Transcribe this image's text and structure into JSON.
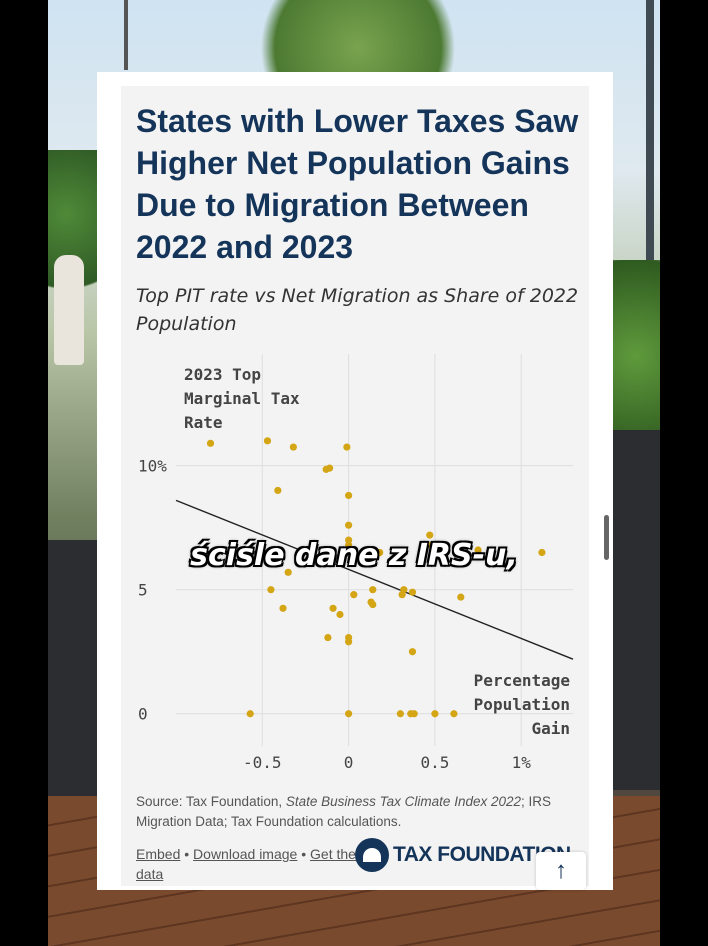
{
  "card": {
    "title": "States with Lower Taxes Saw Higher Net Population Gains Due to Migration Between 2022 and 2023",
    "subtitle": "Top PIT rate vs Net Migration as Share of 2022 Population",
    "source_prefix": "Source: Tax Foundation, ",
    "source_italic": "State Business Tax Climate Index 2022",
    "source_suffix": "; IRS Migration Data; Tax Foundation calculations.",
    "embed_label": "Embed",
    "download_label": "Download image",
    "getdata_label": "Get the data",
    "logo_text": "TAX FOUNDATION",
    "scroll_up_glyph": "↑"
  },
  "caption": "ściśle dane z IRS-u,",
  "colors": {
    "title": "#14345a",
    "point": "#d4a514",
    "trend": "#222222",
    "grid": "#dedede"
  },
  "chart_data": {
    "type": "scatter",
    "title": "States with Lower Taxes Saw Higher Net Population Gains Due to Migration Between 2022 and 2023",
    "subtitle": "Top PIT rate vs Net Migration as Share of 2022 Population",
    "ylabel_lines": [
      "2023 Top",
      "Marginal Tax",
      "Rate"
    ],
    "xlabel_lines": [
      "Percentage",
      "Population",
      "Gain"
    ],
    "xlim": [
      -1.0,
      1.3
    ],
    "ylim": [
      -1.3,
      14.5
    ],
    "xticks": [
      {
        "value": -0.5,
        "label": "-0.5"
      },
      {
        "value": 0,
        "label": "0"
      },
      {
        "value": 0.5,
        "label": "0.5"
      },
      {
        "value": 1,
        "label": "1%"
      }
    ],
    "yticks": [
      {
        "value": 0,
        "label": "0"
      },
      {
        "value": 5,
        "label": "5"
      },
      {
        "value": 10,
        "label": "10%"
      }
    ],
    "grid": true,
    "trendline": {
      "from": [
        -1.0,
        8.6
      ],
      "to": [
        1.3,
        2.2
      ]
    },
    "points": [
      {
        "x": -0.8,
        "y": 10.9
      },
      {
        "x": -0.47,
        "y": 11.0
      },
      {
        "x": -0.32,
        "y": 10.75
      },
      {
        "x": -0.01,
        "y": 10.75
      },
      {
        "x": -0.13,
        "y": 9.85
      },
      {
        "x": -0.11,
        "y": 9.9
      },
      {
        "x": -0.41,
        "y": 9.0
      },
      {
        "x": 0.0,
        "y": 8.8
      },
      {
        "x": 0.0,
        "y": 7.6
      },
      {
        "x": 0.0,
        "y": 7.0
      },
      {
        "x": 0.0,
        "y": 6.8
      },
      {
        "x": 0.47,
        "y": 7.2
      },
      {
        "x": 0.48,
        "y": 6.8
      },
      {
        "x": 0.75,
        "y": 6.6
      },
      {
        "x": 0.18,
        "y": 6.5
      },
      {
        "x": 1.12,
        "y": 6.5
      },
      {
        "x": -0.35,
        "y": 5.7
      },
      {
        "x": -0.45,
        "y": 5.0
      },
      {
        "x": 0.03,
        "y": 4.8
      },
      {
        "x": 0.14,
        "y": 5.0
      },
      {
        "x": 0.32,
        "y": 5.0
      },
      {
        "x": 0.31,
        "y": 4.8
      },
      {
        "x": 0.37,
        "y": 4.9
      },
      {
        "x": 0.65,
        "y": 4.7
      },
      {
        "x": 0.13,
        "y": 4.5
      },
      {
        "x": 0.14,
        "y": 4.4
      },
      {
        "x": -0.38,
        "y": 4.25
      },
      {
        "x": -0.09,
        "y": 4.25
      },
      {
        "x": -0.05,
        "y": 4.0
      },
      {
        "x": -0.12,
        "y": 3.07
      },
      {
        "x": 0.0,
        "y": 3.07
      },
      {
        "x": 0.0,
        "y": 2.9
      },
      {
        "x": 0.37,
        "y": 2.5
      },
      {
        "x": -0.57,
        "y": 0
      },
      {
        "x": 0.0,
        "y": 0
      },
      {
        "x": 0.3,
        "y": 0
      },
      {
        "x": 0.36,
        "y": 0
      },
      {
        "x": 0.38,
        "y": 0
      },
      {
        "x": 0.5,
        "y": 0
      },
      {
        "x": 0.61,
        "y": 0
      }
    ]
  }
}
